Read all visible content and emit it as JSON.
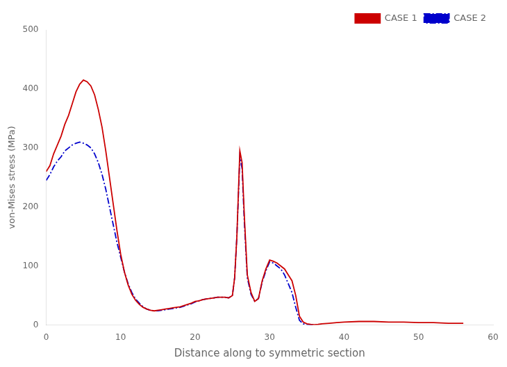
{
  "chart_data": {
    "type": "line",
    "xlabel": "Distance along to symmetric section",
    "ylabel": "von-Mises stress (MPa)",
    "xlim": [
      0,
      60
    ],
    "ylim": [
      0,
      500
    ],
    "xticks": [
      0,
      10,
      20,
      30,
      40,
      50,
      60
    ],
    "yticks": [
      0,
      100,
      200,
      300,
      400,
      500
    ],
    "grid": false,
    "legend": "upper right",
    "series": [
      {
        "name": "CASE 1",
        "color": "#cc0000",
        "line_style": "solid",
        "x": [
          0,
          0.5,
          1.0,
          1.5,
          2.0,
          2.5,
          3.0,
          3.5,
          4.0,
          4.5,
          5.0,
          5.5,
          6.0,
          6.5,
          7.0,
          7.5,
          8.0,
          8.5,
          9.0,
          9.5,
          10.0,
          10.5,
          11.0,
          11.5,
          12.0,
          12.5,
          13.0,
          13.5,
          14.0,
          14.5,
          15.0,
          15.5,
          16.0,
          16.5,
          17.0,
          17.5,
          18.0,
          18.5,
          19.0,
          19.5,
          20.0,
          20.5,
          21.0,
          21.5,
          22.0,
          22.5,
          23.0,
          23.5,
          24.0,
          24.5,
          25.0,
          25.3,
          25.6,
          26.0,
          26.3,
          26.6,
          27.0,
          27.5,
          28.0,
          28.5,
          29.0,
          29.5,
          30.0,
          30.5,
          31.0,
          31.5,
          32.0,
          32.5,
          33.0,
          33.5,
          34.0,
          34.5,
          35.0,
          35.5,
          36.0,
          36.5,
          37.0,
          38.0,
          39.0,
          40.0,
          42.0,
          44.0,
          46.0,
          48.0,
          50.0,
          52.0,
          54.0,
          56.0
        ],
        "values": [
          260,
          270,
          290,
          305,
          320,
          340,
          355,
          375,
          395,
          408,
          415,
          412,
          405,
          390,
          365,
          335,
          295,
          250,
          205,
          160,
          120,
          90,
          68,
          52,
          42,
          35,
          30,
          27,
          25,
          24,
          25,
          26,
          27,
          28,
          29,
          30,
          31,
          33,
          35,
          37,
          40,
          41,
          43,
          44,
          45,
          46,
          47,
          47,
          47,
          46,
          50,
          80,
          150,
          295,
          275,
          185,
          85,
          55,
          40,
          45,
          75,
          95,
          110,
          108,
          105,
          100,
          95,
          85,
          75,
          50,
          15,
          5,
          2,
          1,
          0.5,
          1,
          2,
          3,
          4,
          5,
          6,
          6,
          5,
          5,
          4,
          4,
          3,
          3
        ]
      },
      {
        "name": "CASE 2",
        "color": "#0000cc",
        "line_style": "dashdot",
        "x": [
          0,
          0.5,
          1.0,
          1.5,
          2.0,
          2.5,
          3.0,
          3.5,
          4.0,
          4.5,
          5.0,
          5.5,
          6.0,
          6.5,
          7.0,
          7.5,
          8.0,
          8.5,
          9.0,
          9.5,
          10.0,
          10.5,
          11.0,
          11.5,
          12.0,
          12.5,
          13.0,
          13.5,
          14.0,
          14.5,
          15.0,
          15.5,
          16.0,
          16.5,
          17.0,
          17.5,
          18.0,
          18.5,
          19.0,
          19.5,
          20.0,
          20.5,
          21.0,
          21.5,
          22.0,
          22.5,
          23.0,
          23.5,
          24.0,
          24.5,
          25.0,
          25.3,
          25.6,
          26.0,
          26.3,
          26.6,
          27.0,
          27.5,
          28.0,
          28.5,
          29.0,
          29.5,
          30.0,
          30.5,
          31.0,
          31.5,
          32.0,
          32.5,
          33.0,
          33.5,
          34.0,
          34.5,
          35.0,
          35.5,
          36.0
        ],
        "values": [
          245,
          255,
          268,
          278,
          285,
          295,
          300,
          305,
          308,
          310,
          308,
          305,
          300,
          290,
          275,
          255,
          230,
          200,
          170,
          140,
          115,
          90,
          70,
          55,
          44,
          37,
          31,
          27,
          25,
          24,
          24,
          25,
          26,
          27,
          28,
          29,
          30,
          32,
          34,
          36,
          39,
          41,
          43,
          44,
          45,
          46,
          47,
          47,
          47,
          46,
          50,
          80,
          150,
          285,
          265,
          175,
          80,
          52,
          40,
          45,
          73,
          92,
          107,
          105,
          100,
          95,
          85,
          70,
          55,
          30,
          8,
          2,
          1,
          0.5,
          0.5
        ]
      }
    ]
  }
}
